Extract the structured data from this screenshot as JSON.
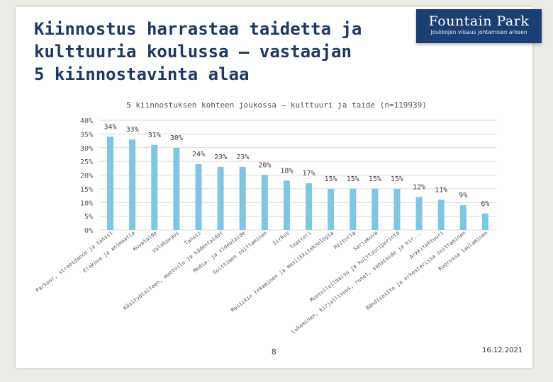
{
  "title": "Kiinnostus harrastaa taidetta ja kulttuuria koulussa – vastaajan 5 kiinnostavinta alaa",
  "logo": {
    "name": "Fountain Park",
    "tagline": "Joukkojen viisaus johtamisen arkeen"
  },
  "colors": {
    "bar": "#7fc6e2",
    "gridline": "#d9d9d9",
    "title": "#1f3864",
    "logo_bg": "#1b3f73"
  },
  "chart_data": {
    "type": "bar",
    "title": "5 kiinnostuksen kohteen joukossa – kulttuuri ja taide (n=119939)",
    "ylim": [
      0,
      40
    ],
    "yticks": [
      0,
      5,
      10,
      15,
      20,
      25,
      30,
      35,
      40
    ],
    "ytick_labels": [
      "0%",
      "5%",
      "10%",
      "15%",
      "20%",
      "25%",
      "30%",
      "35%",
      "40%"
    ],
    "categories": [
      "Parkour, streetdance ja tanssi",
      "Elokuva ja animaatio",
      "Kuvataide",
      "Valokuvaus",
      "Tanssi",
      "Käsityötaiteen, muotoilu ja kädentaidot",
      "Media- ja videotaide",
      "Soittimen soittaminen",
      "Sirkus",
      "Teatteri",
      "Musiikin tekeminen ja musiikkiteknologia",
      "Historia",
      "Sarjakuva",
      "Muotoiluilmaisu ja kulttuuriperintö",
      "Lukeminen, kirjallisuus, runot, sanataide ja kir...",
      "Arkkitehtuuri",
      "Bändisoitto ja orkesterissa soittaminen",
      "Kuorossa laulaminen"
    ],
    "values": [
      34,
      33,
      31,
      30,
      24,
      23,
      23,
      20,
      18,
      17,
      15,
      15,
      15,
      15,
      12,
      11,
      9,
      6
    ],
    "value_labels": [
      "34%",
      "33%",
      "31%",
      "30%",
      "24%",
      "23%",
      "23%",
      "20%",
      "18%",
      "17%",
      "15%",
      "15%",
      "15%",
      "15%",
      "12%",
      "11%",
      "9%",
      "6%"
    ]
  },
  "footer": {
    "page_number": "8",
    "date": "16.12.2021"
  }
}
